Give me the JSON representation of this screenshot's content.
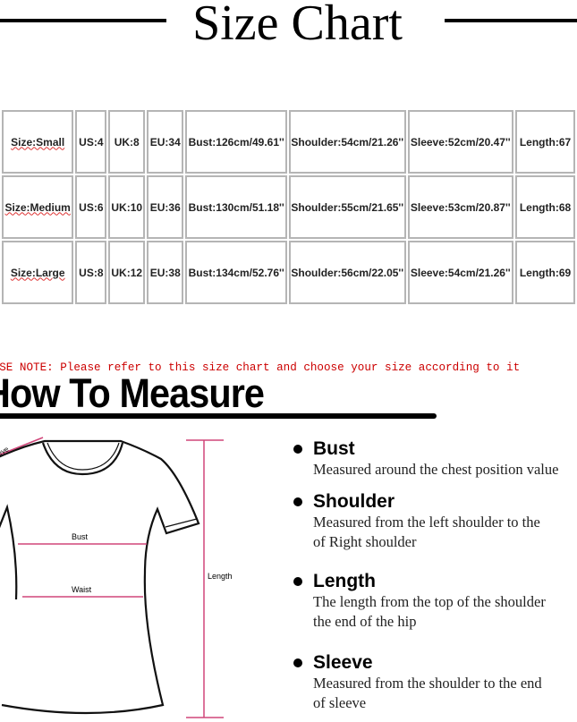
{
  "title": "Size Chart",
  "table": {
    "rows": [
      {
        "size": "Size:Small",
        "us": "US:4",
        "uk": "UK:8",
        "eu": "EU:34",
        "bust": "Bust:126cm/49.61''",
        "shoulder": "Shoulder:54cm/21.26''",
        "sleeve": "Sleeve:52cm/20.47''",
        "length": "Length:67"
      },
      {
        "size": "Size:Medium",
        "us": "US:6",
        "uk": "UK:10",
        "eu": "EU:36",
        "bust": "Bust:130cm/51.18''",
        "shoulder": "Shoulder:55cm/21.65''",
        "sleeve": "Sleeve:53cm/20.87''",
        "length": "Length:68"
      },
      {
        "size": "Size:Large",
        "us": "US:8",
        "uk": "UK:12",
        "eu": "EU:38",
        "bust": "Bust:134cm/52.76''",
        "shoulder": "Shoulder:56cm/22.05''",
        "sleeve": "Sleeve:54cm/21.26''",
        "length": "Length:69"
      }
    ]
  },
  "note": "PLEASE NOTE: Please refer to this size chart and choose your size according to it",
  "how_to": {
    "title": "How To Measure",
    "diagram": {
      "sleeve": "Sleeve",
      "bust": "Bust",
      "waist": "Waist",
      "length": "Length"
    },
    "items": [
      {
        "heading": "Bust",
        "desc": [
          "Measured around the chest position value"
        ]
      },
      {
        "heading": "Shoulder",
        "desc": [
          "Measured from the left shoulder to the",
          "of Right shoulder"
        ]
      },
      {
        "heading": "Length",
        "desc": [
          "The length from the top of the shoulder",
          "the end of the hip"
        ]
      },
      {
        "heading": "Sleeve",
        "desc": [
          "Measured from the shoulder to the end",
          "of sleeve"
        ]
      }
    ]
  },
  "colors": {
    "note": "#cc0000",
    "measure_line": "#d0467a"
  }
}
